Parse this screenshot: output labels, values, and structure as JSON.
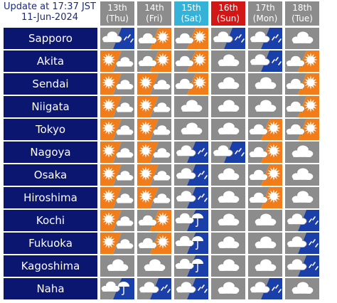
{
  "update": {
    "line1": "Update at 17:37 JST",
    "line2": "11-Jun-2024"
  },
  "colors": {
    "city_bg": "#0b1670",
    "header_bg": "#8c8c8c",
    "saturday_bg": "#35b2d8",
    "sunday_bg": "#d21717",
    "cloud_bg": "#8c8c8c",
    "sun_bg": "#f07c1a",
    "rain_bg": "#1b3fa8"
  },
  "days": [
    {
      "date": "13th",
      "dow": "(Thu)",
      "kind": "weekday"
    },
    {
      "date": "14th",
      "dow": "(Fri)",
      "kind": "weekday"
    },
    {
      "date": "15th",
      "dow": "(Sat)",
      "kind": "saturday"
    },
    {
      "date": "16th",
      "dow": "(Sun)",
      "kind": "sunday"
    },
    {
      "date": "17th",
      "dow": "(Mon)",
      "kind": "weekday"
    },
    {
      "date": "18th",
      "dow": "(Tue)",
      "kind": "weekday"
    }
  ],
  "cities": [
    {
      "name": "Sapporo",
      "forecast": [
        "cloudy-then-rain-icon",
        "cloudy-then-sunny-icon",
        "cloudy-then-sunny-icon",
        "cloudy-then-rain-icon",
        "cloudy-then-rain-icon",
        "cloudy-icon"
      ]
    },
    {
      "name": "Akita",
      "forecast": [
        "sunny-then-cloudy-icon",
        "cloudy-then-sunny-icon",
        "cloudy-then-sunny-icon",
        "cloudy-icon",
        "cloudy-then-rain-icon",
        "cloudy-then-sunny-icon"
      ]
    },
    {
      "name": "Sendai",
      "forecast": [
        "sunny-then-cloudy-icon",
        "sunny-then-cloudy-icon",
        "cloudy-then-sunny-icon",
        "cloudy-icon",
        "cloudy-icon",
        "cloudy-then-sunny-icon"
      ]
    },
    {
      "name": "Niigata",
      "forecast": [
        "sunny-then-cloudy-icon",
        "sunny-then-cloudy-icon",
        "cloudy-icon",
        "cloudy-icon",
        "cloudy-icon",
        "cloudy-then-sunny-icon"
      ]
    },
    {
      "name": "Tokyo",
      "forecast": [
        "sunny-then-cloudy-icon",
        "sunny-then-cloudy-icon",
        "cloudy-icon",
        "cloudy-icon",
        "cloudy-then-sunny-icon",
        "cloudy-then-sunny-icon"
      ]
    },
    {
      "name": "Nagoya",
      "forecast": [
        "sunny-then-cloudy-icon",
        "sunny-then-cloudy-icon",
        "cloudy-then-rain-icon",
        "cloudy-then-rain-icon",
        "cloudy-then-sunny-icon",
        "cloudy-icon"
      ]
    },
    {
      "name": "Osaka",
      "forecast": [
        "sunny-then-cloudy-icon",
        "sunny-then-cloudy-icon",
        "cloudy-then-rain-icon",
        "cloudy-icon",
        "cloudy-then-sunny-icon",
        "cloudy-icon"
      ]
    },
    {
      "name": "Hiroshima",
      "forecast": [
        "sunny-then-cloudy-icon",
        "sunny-then-cloudy-icon",
        "cloudy-then-rain-icon",
        "cloudy-icon",
        "cloudy-then-sunny-icon",
        "cloudy-icon"
      ]
    },
    {
      "name": "Kochi",
      "forecast": [
        "sunny-then-cloudy-icon",
        "cloudy-then-sunny-icon",
        "cloudy-then-umbrella-icon",
        "cloudy-icon",
        "cloudy-icon",
        "cloudy-then-rain-icon"
      ]
    },
    {
      "name": "Fukuoka",
      "forecast": [
        "sunny-then-cloudy-icon",
        "cloudy-then-sunny-icon",
        "cloudy-then-umbrella-icon",
        "cloudy-icon",
        "cloudy-icon",
        "cloudy-then-rain-icon"
      ]
    },
    {
      "name": "Kagoshima",
      "forecast": [
        "cloudy-icon",
        "cloudy-icon",
        "cloudy-then-umbrella-icon",
        "cloudy-icon",
        "cloudy-icon",
        "cloudy-then-rain-icon"
      ]
    },
    {
      "name": "Naha",
      "forecast": [
        "cloudy-then-umbrella-icon",
        "cloudy-then-rain-icon",
        "cloudy-then-rain-icon",
        "cloudy-icon",
        "cloudy-then-rain-icon",
        "cloudy-icon"
      ]
    }
  ]
}
